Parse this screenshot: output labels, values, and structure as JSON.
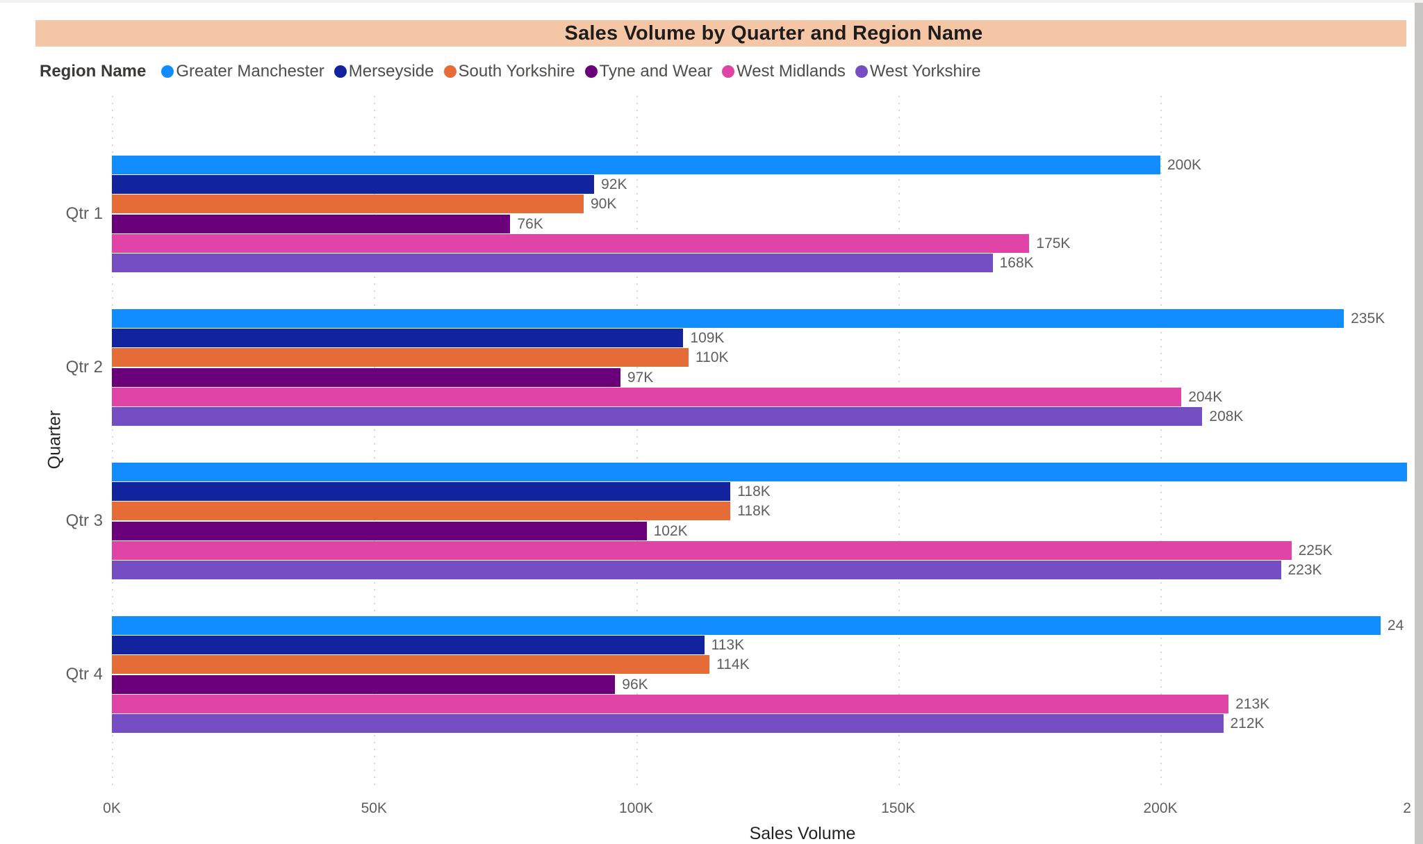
{
  "page": {
    "title_band": {
      "text": "Sales Volume by Quarter and Region Name",
      "bg_color": "#F5C6A5",
      "text_color": "#1F1D1B"
    }
  },
  "legend": {
    "title": "Region Name"
  },
  "chart_data": {
    "type": "bar",
    "orientation": "horizontal",
    "title": "Sales Volume by Quarter and Region Name",
    "xlabel": "Sales Volume",
    "ylabel": "Quarter",
    "categories": [
      "Qtr 1",
      "Qtr 2",
      "Qtr 3",
      "Qtr 4"
    ],
    "value_units": "K",
    "series": [
      {
        "name": "Greater Manchester",
        "color": "#118DFF",
        "values": [
          200,
          235,
          260,
          242
        ],
        "labels": [
          "200K",
          "235K",
          "",
          "24"
        ],
        "clipped": [
          false,
          false,
          true,
          true
        ]
      },
      {
        "name": "Merseyside",
        "color": "#12239E",
        "values": [
          92,
          109,
          118,
          113
        ],
        "labels": [
          "92K",
          "109K",
          "118K",
          "113K"
        ],
        "clipped": [
          false,
          false,
          false,
          false
        ]
      },
      {
        "name": "South Yorkshire",
        "color": "#E66C37",
        "values": [
          90,
          110,
          118,
          114
        ],
        "labels": [
          "90K",
          "110K",
          "118K",
          "114K"
        ],
        "clipped": [
          false,
          false,
          false,
          false
        ]
      },
      {
        "name": "Tyne and Wear",
        "color": "#6B007B",
        "values": [
          76,
          97,
          102,
          96
        ],
        "labels": [
          "76K",
          "97K",
          "102K",
          "96K"
        ],
        "clipped": [
          false,
          false,
          false,
          false
        ]
      },
      {
        "name": "West Midlands",
        "color": "#E044A7",
        "values": [
          175,
          204,
          225,
          213
        ],
        "labels": [
          "175K",
          "204K",
          "225K",
          "213K"
        ],
        "clipped": [
          false,
          false,
          false,
          false
        ]
      },
      {
        "name": "West Yorkshire",
        "color": "#744EC2",
        "values": [
          168,
          208,
          223,
          212
        ],
        "labels": [
          "168K",
          "208K",
          "223K",
          "212K"
        ],
        "clipped": [
          false,
          false,
          false,
          false
        ]
      }
    ],
    "x_ticks": [
      {
        "label": "0K",
        "value": 0
      },
      {
        "label": "50K",
        "value": 50
      },
      {
        "label": "100K",
        "value": 100
      },
      {
        "label": "150K",
        "value": 150
      },
      {
        "label": "200K",
        "value": 200
      },
      {
        "label": "2",
        "value": 250,
        "truncated": true
      }
    ],
    "xlim": [
      0,
      247
    ],
    "grid": "vertical-dotted",
    "legend_position": "top"
  }
}
